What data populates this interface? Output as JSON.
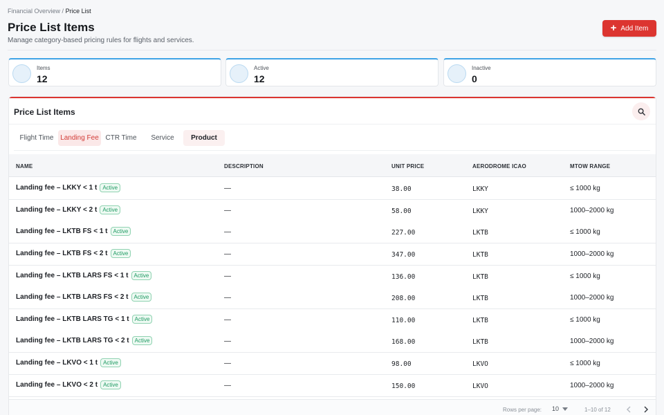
{
  "breadcrumb": {
    "parent": "Financial Overview",
    "separator": "/",
    "current": "Price List"
  },
  "header": {
    "title": "Price List Items",
    "subtitle": "Manage category-based pricing rules for flights and services.",
    "add_button_label": "Add Item"
  },
  "stats": [
    {
      "label": "Items",
      "value": "12"
    },
    {
      "label": "Active",
      "value": "12"
    },
    {
      "label": "Inactive",
      "value": "0"
    }
  ],
  "card": {
    "title": "Price List Items"
  },
  "tabs": [
    {
      "label": "Flight Time"
    },
    {
      "label": "Landing Fee"
    },
    {
      "label": "CTR Time"
    },
    {
      "label": "Service"
    },
    {
      "label": "Product"
    }
  ],
  "table": {
    "columns": [
      "NAME",
      "DESCRIPTION",
      "UNIT PRICE",
      "AERODROME ICAO",
      "MTOW RANGE"
    ],
    "rows": [
      {
        "name": "Landing fee – LKKY < 1 t",
        "status": "Active",
        "description": "—",
        "unit_price": "38.00",
        "icao": "LKKY",
        "mtow": "≤ 1000 kg"
      },
      {
        "name": "Landing fee – LKKY < 2 t",
        "status": "Active",
        "description": "—",
        "unit_price": "58.00",
        "icao": "LKKY",
        "mtow": "1000–2000 kg"
      },
      {
        "name": "Landing fee – LKTB FS < 1 t",
        "status": "Active",
        "description": "—",
        "unit_price": "227.00",
        "icao": "LKTB",
        "mtow": "≤ 1000 kg"
      },
      {
        "name": "Landing fee – LKTB FS < 2 t",
        "status": "Active",
        "description": "—",
        "unit_price": "347.00",
        "icao": "LKTB",
        "mtow": "1000–2000 kg"
      },
      {
        "name": "Landing fee – LKTB LARS FS < 1 t",
        "status": "Active",
        "description": "—",
        "unit_price": "136.00",
        "icao": "LKTB",
        "mtow": "≤ 1000 kg"
      },
      {
        "name": "Landing fee – LKTB LARS FS < 2 t",
        "status": "Active",
        "description": "—",
        "unit_price": "208.00",
        "icao": "LKTB",
        "mtow": "1000–2000 kg"
      },
      {
        "name": "Landing fee – LKTB LARS TG < 1 t",
        "status": "Active",
        "description": "—",
        "unit_price": "110.00",
        "icao": "LKTB",
        "mtow": "≤ 1000 kg"
      },
      {
        "name": "Landing fee – LKTB LARS TG < 2 t",
        "status": "Active",
        "description": "—",
        "unit_price": "168.00",
        "icao": "LKTB",
        "mtow": "1000–2000 kg"
      },
      {
        "name": "Landing fee – LKVO < 1 t",
        "status": "Active",
        "description": "—",
        "unit_price": "98.00",
        "icao": "LKVO",
        "mtow": "≤ 1000 kg"
      },
      {
        "name": "Landing fee – LKVO < 2 t",
        "status": "Active",
        "description": "—",
        "unit_price": "150.00",
        "icao": "LKVO",
        "mtow": "1000–2000 kg"
      }
    ]
  },
  "pagination": {
    "rows_per_page_label": "Rows per page:",
    "rows_per_page": "10",
    "range": "1–10 of 12"
  },
  "icons": {
    "add": "plus-icon",
    "search": "search-icon",
    "dropdown": "chevron-down-icon",
    "prev": "chevron-left-icon",
    "next": "chevron-right-icon"
  },
  "colors": {
    "accent": "#dc3530",
    "stat_accent": "#3ea3e6",
    "active_badge": "#1f9a63"
  }
}
